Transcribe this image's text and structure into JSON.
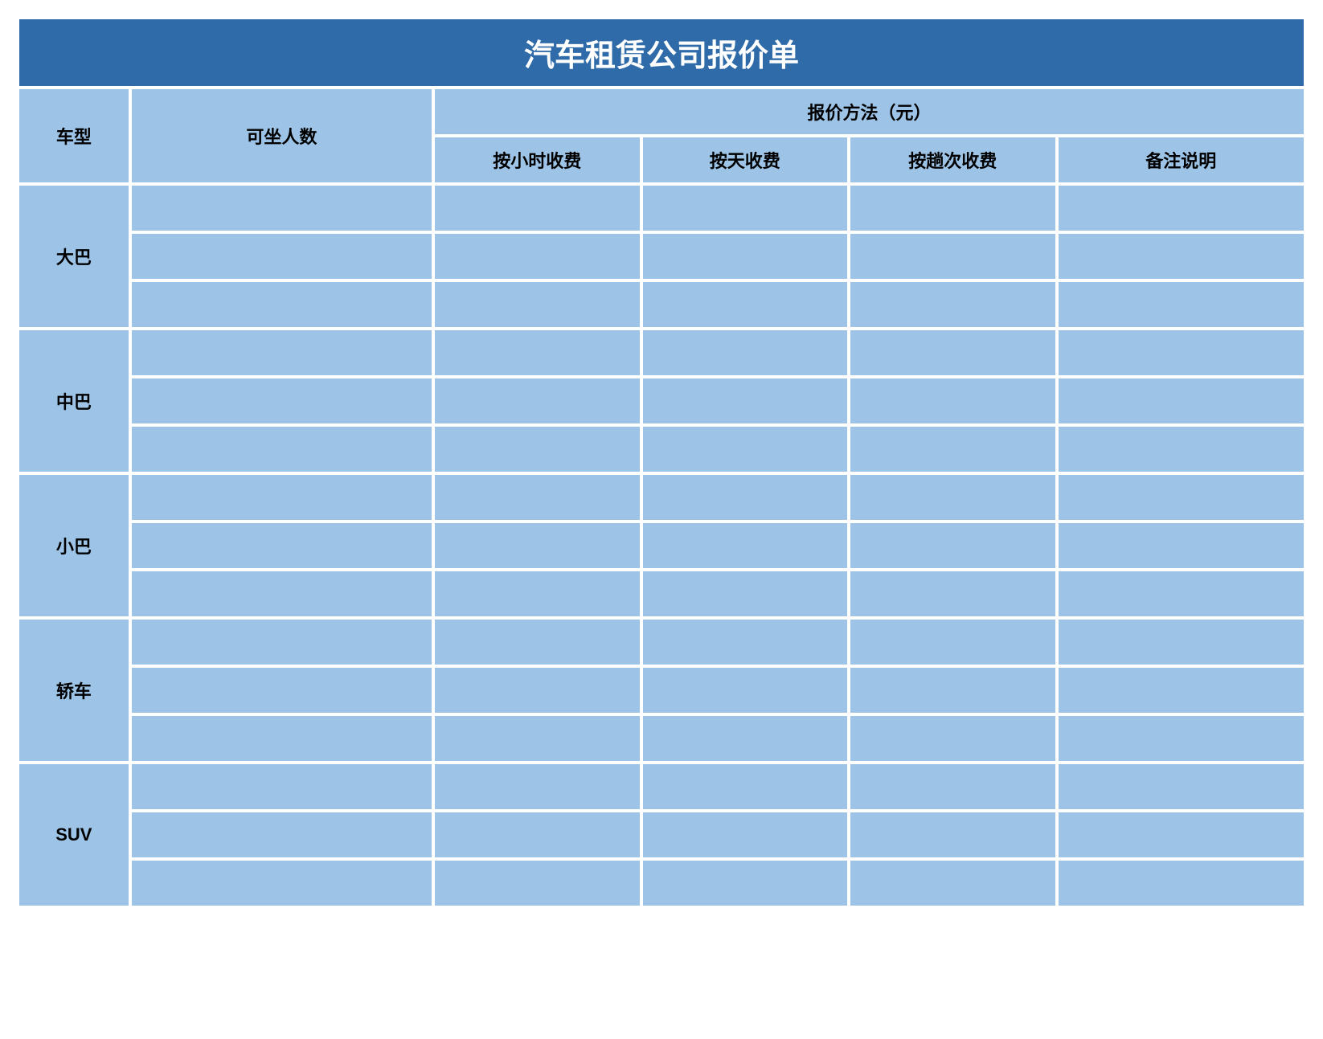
{
  "title": "汽车租赁公司报价单",
  "headers": {
    "vehicle_type": "车型",
    "capacity": "可坐人数",
    "pricing_method": "报价方法（元）",
    "by_hour": "按小时收费",
    "by_day": "按天收费",
    "by_trip": "按趟次收费",
    "remarks": "备注说明"
  },
  "colors": {
    "title_bg": "#2e6ba8",
    "title_text": "#ffffff",
    "cell_bg": "#9dc3e6",
    "cell_text": "#000000",
    "page_bg": "#ffffff"
  },
  "vehicle_types": [
    {
      "name": "大巴",
      "rows": [
        {
          "capacity": "",
          "by_hour": "",
          "by_day": "",
          "by_trip": "",
          "remarks": ""
        },
        {
          "capacity": "",
          "by_hour": "",
          "by_day": "",
          "by_trip": "",
          "remarks": ""
        },
        {
          "capacity": "",
          "by_hour": "",
          "by_day": "",
          "by_trip": "",
          "remarks": ""
        }
      ]
    },
    {
      "name": "中巴",
      "rows": [
        {
          "capacity": "",
          "by_hour": "",
          "by_day": "",
          "by_trip": "",
          "remarks": ""
        },
        {
          "capacity": "",
          "by_hour": "",
          "by_day": "",
          "by_trip": "",
          "remarks": ""
        },
        {
          "capacity": "",
          "by_hour": "",
          "by_day": "",
          "by_trip": "",
          "remarks": ""
        }
      ]
    },
    {
      "name": "小巴",
      "rows": [
        {
          "capacity": "",
          "by_hour": "",
          "by_day": "",
          "by_trip": "",
          "remarks": ""
        },
        {
          "capacity": "",
          "by_hour": "",
          "by_day": "",
          "by_trip": "",
          "remarks": ""
        },
        {
          "capacity": "",
          "by_hour": "",
          "by_day": "",
          "by_trip": "",
          "remarks": ""
        }
      ]
    },
    {
      "name": "轿车",
      "rows": [
        {
          "capacity": "",
          "by_hour": "",
          "by_day": "",
          "by_trip": "",
          "remarks": ""
        },
        {
          "capacity": "",
          "by_hour": "",
          "by_day": "",
          "by_trip": "",
          "remarks": ""
        },
        {
          "capacity": "",
          "by_hour": "",
          "by_day": "",
          "by_trip": "",
          "remarks": ""
        }
      ]
    },
    {
      "name": "SUV",
      "rows": [
        {
          "capacity": "",
          "by_hour": "",
          "by_day": "",
          "by_trip": "",
          "remarks": ""
        },
        {
          "capacity": "",
          "by_hour": "",
          "by_day": "",
          "by_trip": "",
          "remarks": ""
        },
        {
          "capacity": "",
          "by_hour": "",
          "by_day": "",
          "by_trip": "",
          "remarks": ""
        }
      ]
    }
  ]
}
